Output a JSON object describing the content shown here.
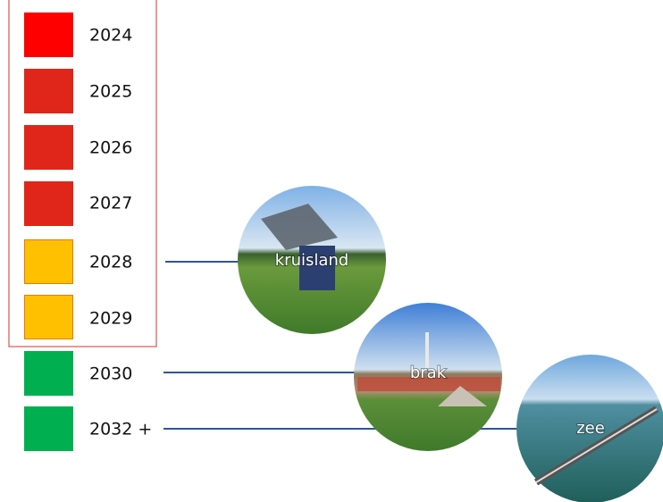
{
  "timeline": [
    {
      "label": "2024"
    },
    {
      "label": "2025"
    },
    {
      "label": "2026"
    },
    {
      "label": "2027"
    },
    {
      "label": "2028"
    },
    {
      "label": "2029"
    },
    {
      "label": "2030"
    },
    {
      "label": "2032 +"
    }
  ],
  "sites": [
    {
      "label": "kruisland"
    },
    {
      "label": "brak"
    },
    {
      "label": "zee"
    }
  ]
}
